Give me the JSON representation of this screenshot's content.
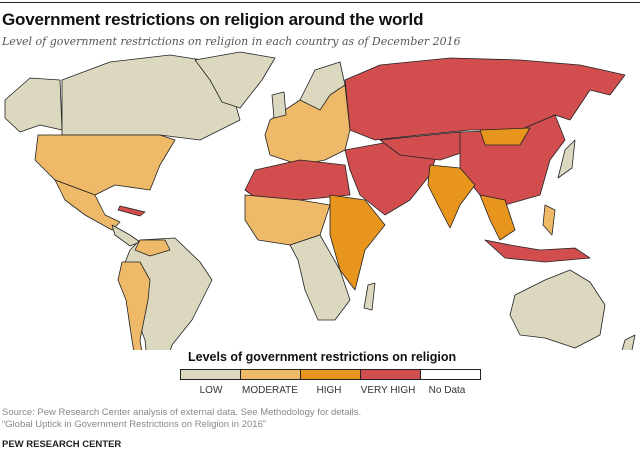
{
  "header": {
    "title": "Government restrictions on religion around the world",
    "subtitle": "Level of government restrictions on religion in each country as of December 2016"
  },
  "legend": {
    "title": "Levels of government restrictions on religion",
    "items": [
      {
        "label": "LOW",
        "color": "#dcd8c0"
      },
      {
        "label": "MODERATE",
        "color": "#efb96a"
      },
      {
        "label": "HIGH",
        "color": "#e8951e"
      },
      {
        "label": "VERY HIGH",
        "color": "#d24e4e"
      },
      {
        "label": "No Data",
        "color": "#ffffff"
      }
    ]
  },
  "footer": {
    "source": "Source: Pew Research Center analysis of external data. See Methodology for details.",
    "report": "“Global Uptick in Government Restrictions on Religion in 2016”",
    "brand": "PEW RESEARCH CENTER"
  }
}
